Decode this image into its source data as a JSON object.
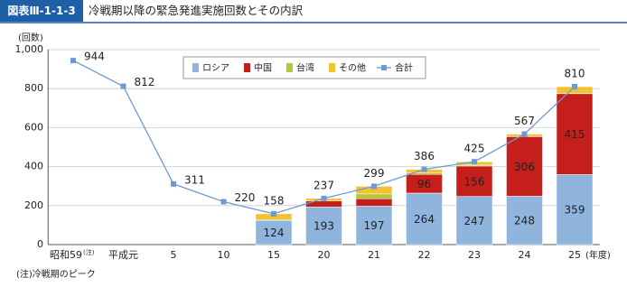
{
  "header": {
    "badge": "図表Ⅲ-1-1-3",
    "title": "冷戦期以降の緊急発進実施回数とその内訳"
  },
  "chart_data": {
    "type": "bar_line",
    "y_label": "(回数)",
    "x_label": "(年度)",
    "categories": [
      "昭和59",
      "平成元",
      "5",
      "10",
      "15",
      "20",
      "21",
      "22",
      "23",
      "24",
      "25"
    ],
    "category_note": "(注)",
    "ylim": [
      0,
      1000
    ],
    "yticks": [
      0,
      200,
      400,
      600,
      800,
      {
        "value": 1000,
        "label": "1,000"
      }
    ],
    "grid": true,
    "series": [
      {
        "name": "ロシア",
        "kind": "bar",
        "color": "#8fb4de",
        "show_labels": true,
        "values": [
          null,
          null,
          null,
          null,
          124,
          193,
          197,
          264,
          247,
          248,
          359
        ]
      },
      {
        "name": "中国",
        "kind": "bar",
        "color": "#c41f1a",
        "show_labels": true,
        "values": [
          null,
          null,
          null,
          null,
          2,
          31,
          38,
          96,
          156,
          306,
          415
        ]
      },
      {
        "name": "台湾",
        "kind": "bar",
        "color": "#b7c83c",
        "show_labels": false,
        "values": [
          null,
          null,
          null,
          null,
          0,
          0,
          25,
          7,
          5,
          1,
          1
        ]
      },
      {
        "name": "その他",
        "kind": "bar",
        "color": "#f2c232",
        "show_labels": false,
        "values": [
          null,
          null,
          null,
          null,
          32,
          13,
          39,
          19,
          17,
          12,
          35
        ]
      },
      {
        "name": "合計",
        "kind": "line",
        "color": "#6b9bd1",
        "show_labels": true,
        "values": [
          944,
          812,
          311,
          220,
          158,
          237,
          299,
          386,
          425,
          567,
          810
        ]
      }
    ]
  },
  "footnote": "(注)冷戦期のピーク"
}
